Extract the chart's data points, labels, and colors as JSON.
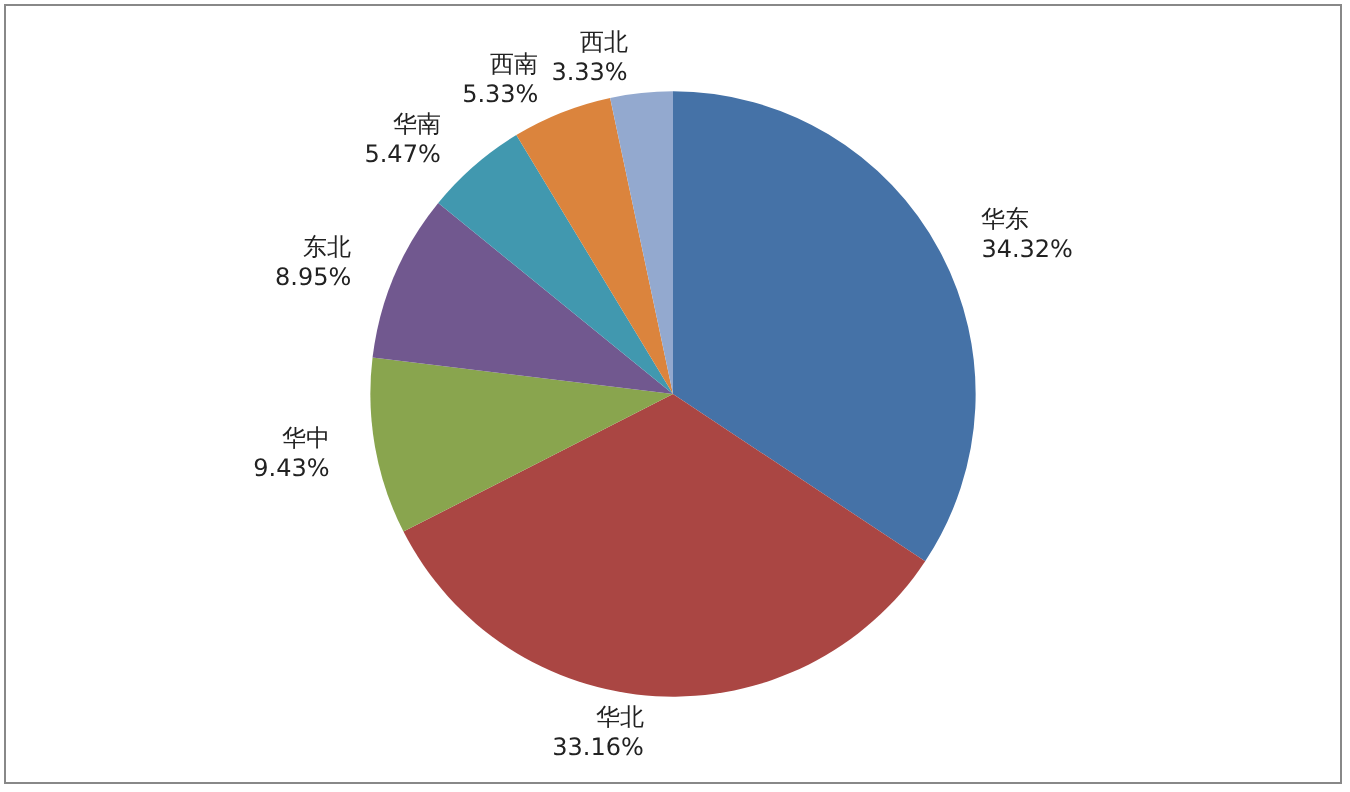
{
  "chart_data": {
    "type": "pie",
    "categories": [
      "华东",
      "华北",
      "华中",
      "东北",
      "华南",
      "西南",
      "西北"
    ],
    "values": [
      34.32,
      33.16,
      9.43,
      8.95,
      5.47,
      5.33,
      3.33
    ],
    "value_labels": [
      "34.32%",
      "33.16%",
      "9.43%",
      "8.95%",
      "5.47%",
      "5.33%",
      "3.33%"
    ],
    "colors": [
      "#4572a7",
      "#aa4643",
      "#89a54e",
      "#71588f",
      "#4198af",
      "#db843d",
      "#93a9cf"
    ],
    "legend": false
  }
}
